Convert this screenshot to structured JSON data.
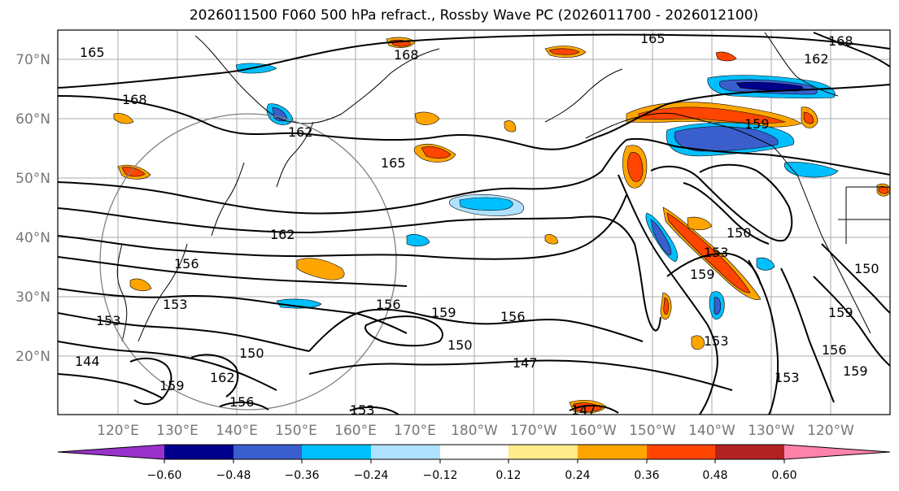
{
  "title": "2026011500 F060 500 hPa refract., Rossby Wave PC (2026011700 - 2026012100)",
  "lat_labels": [
    "70°N",
    "60°N",
    "50°N",
    "40°N",
    "30°N",
    "20°N"
  ],
  "lon_labels": [
    "120°E",
    "130°E",
    "140°E",
    "150°E",
    "160°E",
    "170°E",
    "180°W",
    "170°W",
    "160°W",
    "150°W",
    "140°W",
    "130°W",
    "120°W"
  ],
  "colorbar": {
    "tick_labels": [
      "−0.60",
      "−0.48",
      "−0.36",
      "−0.24",
      "−0.12",
      "0.12",
      "0.24",
      "0.36",
      "0.48",
      "0.60"
    ],
    "colors": [
      "#9932cc",
      "#00008b",
      "#3a5fcd",
      "#00bfff",
      "#b0e2ff",
      "#ffffff",
      "#ffec8b",
      "#ffa500",
      "#ff4500",
      "#b22222",
      "#ff82ab"
    ]
  },
  "contour_labels": [
    "165",
    "168",
    "168",
    "162",
    "168",
    "162",
    "165",
    "159",
    "162",
    "156",
    "153",
    "150",
    "147",
    "153",
    "144",
    "159",
    "162",
    "156",
    "153",
    "147",
    "156",
    "150",
    "150",
    "159",
    "156",
    "153",
    "159",
    "150",
    "159",
    "159",
    "156",
    "153"
  ]
}
